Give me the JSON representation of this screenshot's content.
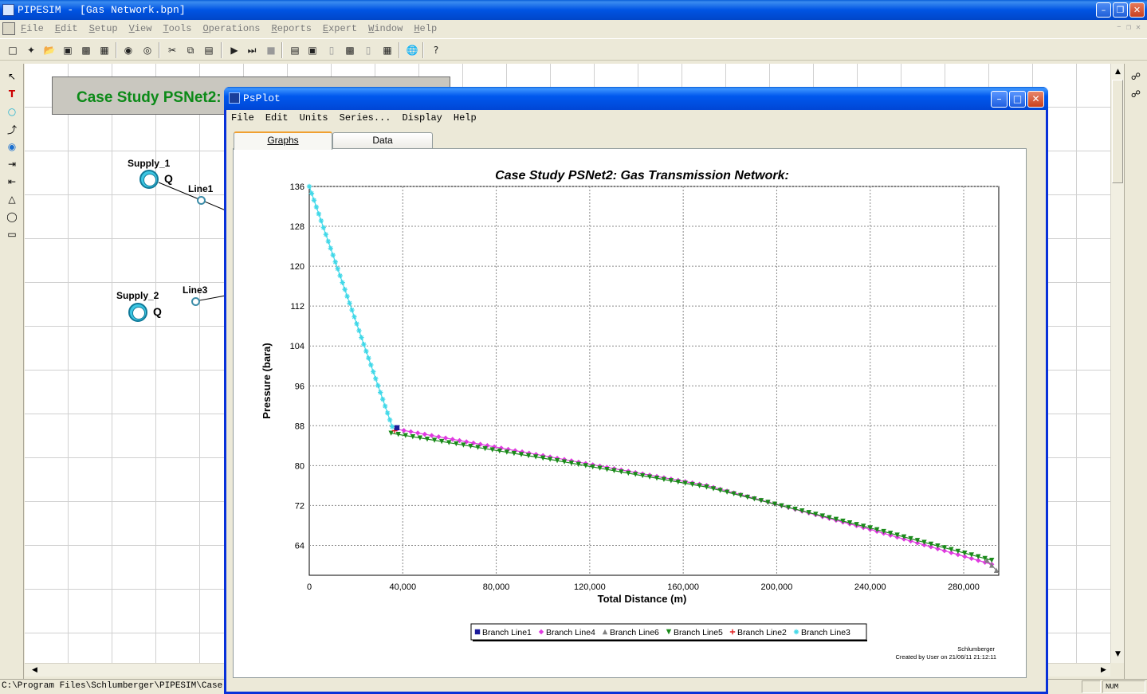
{
  "app": {
    "title": "PIPESIM - [Gas Network.bpn]",
    "menu": [
      "File",
      "Edit",
      "Setup",
      "View",
      "Tools",
      "Operations",
      "Reports",
      "Expert",
      "Window",
      "Help"
    ]
  },
  "canvas": {
    "case_title": "Case Study PSNet2:",
    "nodes": [
      {
        "name": "Supply_1",
        "q": "Q"
      },
      {
        "name": "Supply_2",
        "q": "Q"
      }
    ],
    "pipes": [
      "Line1",
      "Line3"
    ]
  },
  "statusbar": {
    "path": "C:\\Program Files\\Schlumberger\\PIPESIM\\Case Stu",
    "num": "NUM"
  },
  "psplot": {
    "title": "PsPlot",
    "menu": [
      "File",
      "Edit",
      "Units",
      "Series...",
      "Display",
      "Help"
    ],
    "tabs": [
      "Graphs",
      "Data"
    ],
    "footer": {
      "brand": "Schlumberger",
      "created": "Created by User on 21/06/11 21:12:11"
    }
  },
  "chart_data": {
    "type": "line",
    "title": "Case Study PSNet2: Gas Transmission Network:",
    "xlabel": "Total Distance (m)",
    "ylabel": "Pressure (bara)",
    "xlim": [
      0,
      295000
    ],
    "ylim": [
      58,
      136
    ],
    "xticks": [
      0,
      40000,
      80000,
      120000,
      160000,
      200000,
      240000,
      280000
    ],
    "xtick_labels": [
      "0",
      "40,000",
      "80,000",
      "120,000",
      "160,000",
      "200,000",
      "240,000",
      "280,000"
    ],
    "yticks": [
      64,
      72,
      80,
      88,
      96,
      104,
      112,
      120,
      128,
      136
    ],
    "grid": true,
    "legend_position": "bottom",
    "series": [
      {
        "name": "Branch Line1",
        "color": "#1a1a9a",
        "marker": "square",
        "x": [
          37500
        ],
        "y": [
          87.6
        ]
      },
      {
        "name": "Branch Line4",
        "color": "#e03ae0",
        "marker": "diamond",
        "x": [
          37500,
          100000,
          170000,
          240000,
          292000
        ],
        "y": [
          87.3,
          82.0,
          76.0,
          67.2,
          60.2
        ]
      },
      {
        "name": "Branch Line6",
        "color": "#808080",
        "marker": "triangle-up",
        "x": [
          290000,
          294000
        ],
        "y": [
          61.0,
          59.0
        ]
      },
      {
        "name": "Branch Line5",
        "color": "#1a8a1a",
        "marker": "triangle-down",
        "x": [
          35000,
          100000,
          170000,
          240000,
          292000
        ],
        "y": [
          86.5,
          81.5,
          75.7,
          67.5,
          61.0
        ]
      },
      {
        "name": "Branch Line2",
        "color": "#e02020",
        "marker": "plus",
        "x": [
          36500
        ],
        "y": [
          87.0
        ]
      },
      {
        "name": "Branch Line3",
        "color": "#40d8e8",
        "marker": "star",
        "x": [
          0,
          35500
        ],
        "y": [
          136,
          87.8
        ]
      }
    ]
  }
}
